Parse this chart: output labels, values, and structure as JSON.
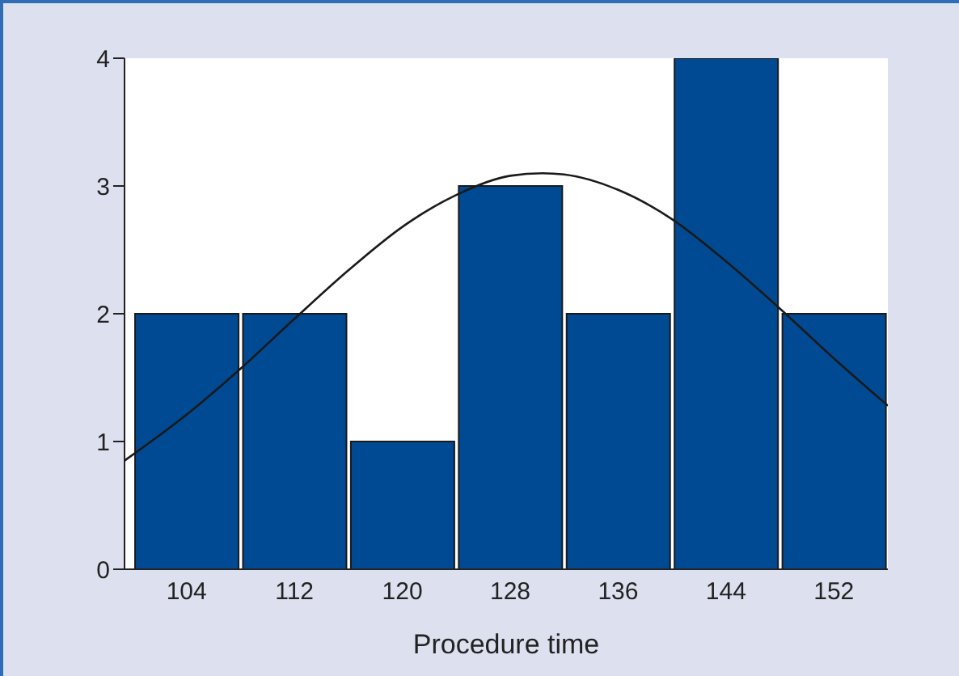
{
  "chart_data": {
    "type": "histogram",
    "xlabel": "Procedure time",
    "bins": [
      100,
      108,
      116,
      124,
      132,
      140,
      148,
      156
    ],
    "xlim": [
      99.4,
      156
    ],
    "xticks": [
      104,
      112,
      120,
      128,
      136,
      144,
      152
    ],
    "ylim": [
      0,
      4
    ],
    "yticks": [
      0,
      1,
      2,
      3,
      4
    ],
    "marker": "none",
    "series": [
      {
        "type": "histogram",
        "color": "#004a93",
        "values": [
          2,
          2,
          1,
          3,
          2,
          4,
          2
        ]
      },
      {
        "type": "line",
        "color": "#1a1a1a",
        "x": [
          99.4,
          104,
          108,
          112,
          116,
          120,
          124,
          128,
          130.4,
          132,
          136,
          140,
          144,
          148,
          152,
          156
        ],
        "values": [
          0.85,
          1.21,
          1.57,
          1.96,
          2.34,
          2.68,
          2.93,
          3.08,
          3.1,
          3.09,
          2.97,
          2.74,
          2.41,
          2.04,
          1.65,
          1.28
        ]
      }
    ]
  }
}
